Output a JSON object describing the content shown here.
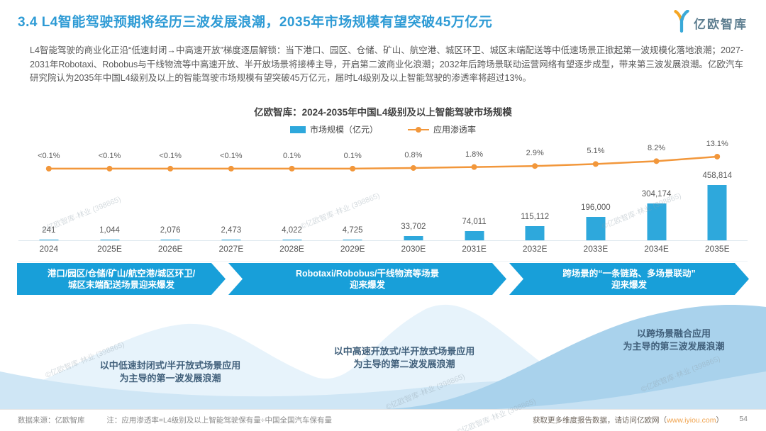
{
  "accent_colors": {
    "title_blue": "#2e9bd5",
    "bar_blue": "#2ea8dc",
    "line_orange": "#f2973b",
    "banner_blue": "#189fd9",
    "wave_light": "#e7f3fb",
    "wave_mid": "#cfe6f5",
    "wave_dark": "#a9d2ec"
  },
  "header": {
    "title": "3.4 L4智能驾驶预期将经历三波发展浪潮，2035年市场规模有望突破45万亿元",
    "logo_text": "亿欧智库"
  },
  "intro": {
    "text": "L4智能驾驶的商业化正沿“低速封闭→中高速开放”梯度逐层解锁：当下港口、园区、仓储、矿山、航空港、城区环卫、城区末端配送等中低速场景正掀起第一波规模化落地浪潮；2027-2031年Robotaxi、Robobus与干线物流等中高速开放、半开放场景将接棒主导，开启第二波商业化浪潮；2032年后跨场景联动运营网络有望逐步成型，带来第三波发展浪潮。亿欧汽车研究院认为2035年中国L4级别及以上的智能驾驶市场规模有望突破45万亿元，届时L4级别及以上智能驾驶的渗透率将超过13%。"
  },
  "chart_data": {
    "type": "bar",
    "title": "亿欧智库：2024-2035年中国L4级别及以上智能驾驶市场规模",
    "categories": [
      "2024",
      "2025E",
      "2026E",
      "2027E",
      "2028E",
      "2029E",
      "2030E",
      "2031E",
      "2032E",
      "2033E",
      "2034E",
      "2035E"
    ],
    "series": [
      {
        "name": "市场规模（亿元）",
        "type": "bar",
        "values": [
          241,
          1044,
          2076,
          2473,
          4022,
          4725,
          33702,
          74011,
          115112,
          196000,
          304174,
          458814
        ],
        "labels": [
          "241",
          "1,044",
          "2,076",
          "2,473",
          "4,022",
          "4,725",
          "33,702",
          "74,011",
          "115,112",
          "196,000",
          "304,174",
          "458,814"
        ]
      },
      {
        "name": "应用渗透率",
        "type": "line",
        "values": [
          0.05,
          0.05,
          0.05,
          0.05,
          0.1,
          0.1,
          0.8,
          1.8,
          2.9,
          5.1,
          8.2,
          13.1
        ],
        "labels": [
          "<0.1%",
          "<0.1%",
          "<0.1%",
          "<0.1%",
          "0.1%",
          "0.1%",
          "0.8%",
          "1.8%",
          "2.9%",
          "5.1%",
          "8.2%",
          "13.1%"
        ]
      }
    ],
    "ylim": [
      0,
      458814
    ],
    "legend_position": "top",
    "grid": false
  },
  "legend": {
    "bar_label": "市场规模（亿元）",
    "line_label": "应用渗透率"
  },
  "banners": [
    {
      "line1": "港口/园区/仓储/矿山/航空港/城区环卫/",
      "line2": "城区末端配送场景迎来爆发"
    },
    {
      "line1": "Robotaxi/Robobus/干线物流等场景",
      "line2": "迎来爆发"
    },
    {
      "line1": "跨场景的“一条链路、多场景联动”",
      "line2": "迎来爆发"
    }
  ],
  "waves": {
    "labels": [
      {
        "line1": "以中低速封闭式/半开放式场景应用",
        "line2": "为主导的第一波发展浪潮"
      },
      {
        "line1": "以中高速开放式/半开放式场景应用",
        "line2": "为主导的第二波发展浪潮"
      },
      {
        "line1": "以跨场景融合应用",
        "line2": "为主导的第三波发展浪潮"
      }
    ]
  },
  "watermark": "©亿欧智库·林业 (398865)",
  "footer": {
    "source": "数据来源：亿欧智库",
    "note": "注：应用渗透率=L4级别及以上智能驾驶保有量÷中国全国汽车保有量",
    "right_prefix": "获取更多维度报告数据，请访问亿欧网（",
    "right_link": "www.iyiou.com",
    "right_suffix": "）",
    "page_number": "54"
  }
}
